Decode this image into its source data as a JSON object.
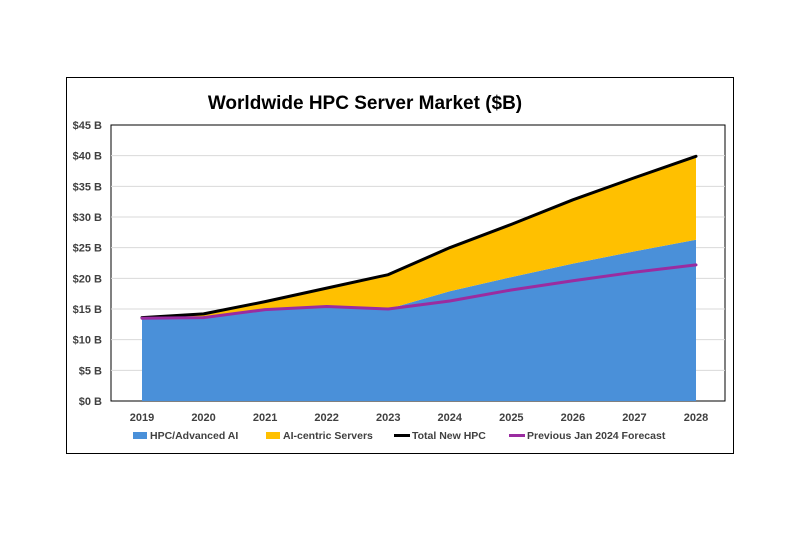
{
  "chart_data": {
    "type": "area",
    "title": "Worldwide HPC Server Market ($B)",
    "categories": [
      "2019",
      "2020",
      "2021",
      "2022",
      "2023",
      "2024",
      "2025",
      "2026",
      "2027",
      "2028"
    ],
    "y_tick_labels": [
      "$0 B",
      "$5 B",
      "$10 B",
      "$15 B",
      "$20 B",
      "$25 B",
      "$30 B",
      "$35 B",
      "$40 B",
      "$45 B"
    ],
    "ylim": [
      0,
      45
    ],
    "grid": true,
    "legend_position": "bottom",
    "series": [
      {
        "name": "HPC/Advanced AI",
        "kind": "stacked-area",
        "color": "#4a90d9",
        "values": [
          13.3,
          13.4,
          14.8,
          15.4,
          15.0,
          17.9,
          20.2,
          22.4,
          24.4,
          26.3
        ]
      },
      {
        "name": "AI-centric Servers",
        "kind": "stacked-area",
        "color": "#ffc000",
        "values": [
          0.3,
          0.8,
          1.4,
          3.0,
          5.6,
          7.1,
          8.6,
          10.4,
          12.0,
          13.6
        ]
      },
      {
        "name": "Total New HPC",
        "kind": "line",
        "color": "#000000",
        "values": [
          13.6,
          14.2,
          16.2,
          18.4,
          20.6,
          25.0,
          28.8,
          32.8,
          36.4,
          39.9
        ]
      },
      {
        "name": "Previous Jan 2024 Forecast",
        "kind": "line",
        "color": "#9a2ca0",
        "values": [
          13.5,
          13.6,
          14.9,
          15.4,
          15.0,
          16.3,
          18.1,
          19.6,
          21.0,
          22.2
        ]
      }
    ]
  }
}
